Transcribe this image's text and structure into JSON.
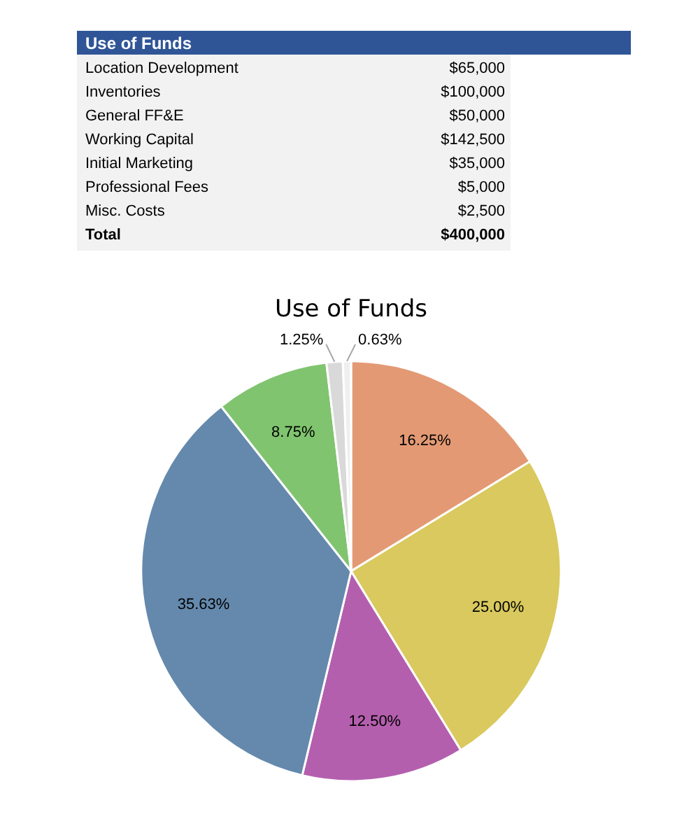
{
  "chart_data": [
    {
      "type": "other",
      "title": "Use of Funds",
      "categories": [
        "Location Development",
        "Inventories",
        "General FF&E",
        "Working Capital",
        "Initial Marketing",
        "Professional Fees",
        "Misc. Costs"
      ],
      "value_labels": [
        "$65,000",
        "$100,000",
        "$50,000",
        "$142,500",
        "$35,000",
        "$5,000",
        "$2,500"
      ],
      "annotations": [
        "Total",
        "$400,000"
      ]
    },
    {
      "type": "pie",
      "title": "Use of Funds",
      "categories": [
        null,
        null,
        null,
        null,
        null,
        null,
        null
      ],
      "values": [
        16.25,
        25.0,
        12.5,
        35.63,
        8.75,
        1.25,
        0.63
      ],
      "value_labels": [
        "16.25%",
        "25.00%",
        "12.50%",
        "35.63%",
        "8.75%",
        "1.25%",
        "0.63%"
      ],
      "colors": [
        "#e39a74",
        "#d9c95e",
        "#b45fae",
        "#6489ad",
        "#80c46f",
        "#d9d9d9",
        "#efefef"
      ]
    }
  ]
}
